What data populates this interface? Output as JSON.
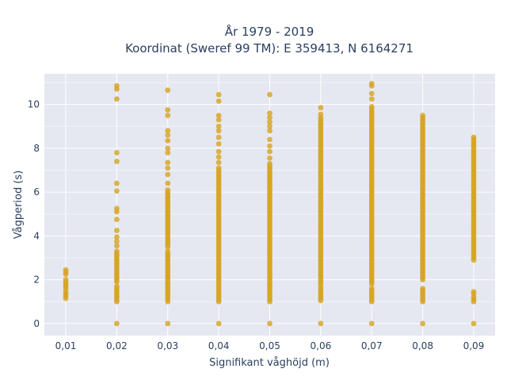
{
  "chart_data": {
    "type": "scatter",
    "title_lines": [
      "År 1979 - 2019",
      "Koordinat (Sweref 99 TM): E 359413, N 6164271"
    ],
    "xlabel": "Signifikant våghöjd (m)",
    "ylabel": "Vågperiod (s)",
    "x_ticks": [
      "0,01",
      "0,02",
      "0,03",
      "0,04",
      "0,05",
      "0,06",
      "0,07",
      "0,08",
      "0,09"
    ],
    "x_tick_values": [
      0.01,
      0.02,
      0.03,
      0.04,
      0.05,
      0.06,
      0.07,
      0.08,
      0.09
    ],
    "y_ticks": [
      0,
      2,
      4,
      6,
      8,
      10
    ],
    "xlim": [
      0.0058,
      0.0942
    ],
    "ylim": [
      -0.55,
      11.4
    ],
    "grid": true,
    "marker_color": "#d6a21f",
    "plot_bg": "#e5e8f1",
    "columns": [
      {
        "x": 0.01,
        "ranges": [
          [
            1.15,
            1.45
          ],
          [
            1.6,
            2.05
          ],
          [
            2.25,
            2.45
          ]
        ],
        "points": []
      },
      {
        "x": 0.02,
        "ranges": [
          [
            1.0,
            1.7
          ],
          [
            1.9,
            3.3
          ]
        ],
        "points": [
          0.0,
          3.55,
          3.75,
          3.95,
          4.25,
          4.75,
          5.1,
          5.25,
          6.05,
          6.4,
          7.4,
          7.8,
          10.25,
          10.7,
          10.85
        ]
      },
      {
        "x": 0.03,
        "ranges": [
          [
            1.0,
            3.3
          ],
          [
            3.5,
            6.1
          ]
        ],
        "points": [
          0.0,
          6.4,
          6.8,
          7.1,
          7.35,
          7.8,
          8.0,
          8.35,
          8.6,
          8.8,
          9.5,
          9.75,
          10.65
        ]
      },
      {
        "x": 0.04,
        "ranges": [
          [
            1.0,
            7.1
          ]
        ],
        "points": [
          0.0,
          7.35,
          7.6,
          7.85,
          8.2,
          8.5,
          8.8,
          9.0,
          9.3,
          9.5,
          10.15,
          10.45
        ]
      },
      {
        "x": 0.05,
        "ranges": [
          [
            1.0,
            7.3
          ]
        ],
        "points": [
          0.0,
          7.55,
          7.85,
          8.1,
          8.4,
          8.8,
          9.0,
          9.2,
          9.4,
          9.6,
          10.45
        ]
      },
      {
        "x": 0.06,
        "ranges": [
          [
            1.05,
            1.7
          ],
          [
            1.8,
            9.4
          ]
        ],
        "points": [
          0.0,
          9.55,
          9.85
        ]
      },
      {
        "x": 0.07,
        "ranges": [
          [
            1.0,
            1.6
          ],
          [
            1.8,
            9.9
          ]
        ],
        "points": [
          0.0,
          10.25,
          10.5,
          10.85,
          10.95
        ]
      },
      {
        "x": 0.08,
        "ranges": [
          [
            1.0,
            1.65
          ],
          [
            2.0,
            9.5
          ]
        ],
        "points": [
          0.0
        ]
      },
      {
        "x": 0.09,
        "ranges": [
          [
            1.0,
            1.2
          ],
          [
            1.35,
            1.5
          ],
          [
            2.9,
            8.55
          ]
        ],
        "points": [
          0.0
        ]
      }
    ]
  }
}
